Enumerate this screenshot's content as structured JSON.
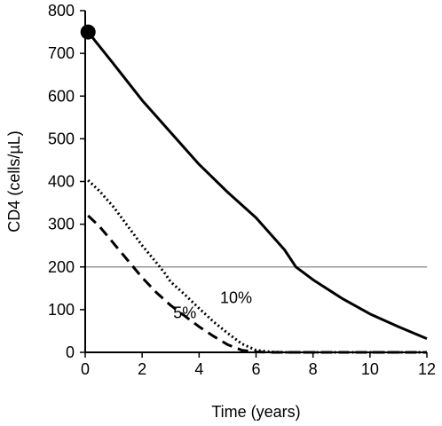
{
  "chart_data": {
    "type": "line",
    "xlabel": "Time (years)",
    "ylabel": "CD4 (cells/µL)",
    "xlim": [
      0,
      12
    ],
    "ylim": [
      0,
      800
    ],
    "x_ticks": [
      "0",
      "2",
      "4",
      "6",
      "8",
      "10",
      "12"
    ],
    "y_ticks": [
      "0",
      "100",
      "200",
      "300",
      "400",
      "500",
      "600",
      "700",
      "800"
    ],
    "reference_line": {
      "y": 200,
      "color": "#999999"
    },
    "start_point": {
      "x": 0.1,
      "y": 750
    },
    "series": [
      {
        "style": "solid",
        "color": "#000000",
        "x": [
          0.1,
          1,
          2,
          3,
          4,
          5,
          6,
          7,
          7.4,
          8,
          9,
          10,
          11,
          12
        ],
        "y": [
          750,
          675,
          590,
          515,
          440,
          375,
          315,
          240,
          200,
          170,
          127,
          90,
          60,
          32
        ]
      },
      {
        "style": "dotted",
        "color": "#000000",
        "x": [
          0.1,
          0.5,
          1,
          1.5,
          2,
          2.5,
          2.8,
          3,
          3.5,
          4,
          4.5,
          5,
          5.5,
          6,
          6.5,
          7,
          8,
          9,
          10,
          11,
          12
        ],
        "y": [
          403,
          378,
          340,
          295,
          250,
          210,
          185,
          165,
          135,
          103,
          72,
          45,
          20,
          5,
          1,
          0,
          0,
          0,
          0,
          0,
          0
        ]
      },
      {
        "style": "dashed",
        "color": "#000000",
        "x": [
          0.1,
          0.5,
          1,
          1.5,
          2,
          2.5,
          3,
          3.5,
          4,
          4.5,
          5,
          5.5,
          6,
          6.5,
          7,
          8,
          9,
          10,
          11,
          12
        ],
        "y": [
          320,
          295,
          255,
          215,
          175,
          140,
          110,
          85,
          60,
          38,
          18,
          5,
          1,
          0,
          0,
          0,
          0,
          0,
          0,
          0
        ]
      }
    ],
    "annotations": [
      {
        "text": "10%",
        "x": 5.3,
        "y": 115
      },
      {
        "text": "5%",
        "x": 3.5,
        "y": 80
      }
    ]
  }
}
